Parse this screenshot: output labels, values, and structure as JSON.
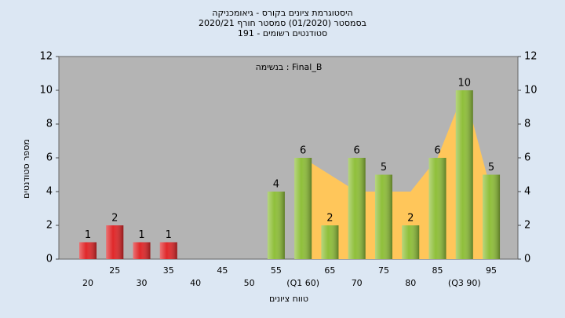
{
  "chart_data": {
    "type": "bar",
    "title": [
      "היסטוגרמת ציונים בקורס - גיאומכניקה",
      "בסמסטר  (01/2020)  סמסטר חורף  2020/21",
      "סטודנטים רשומים - 191"
    ],
    "annotation": "בנשימה : Final_B",
    "x_label": "טווח ציונים",
    "y_label": "מספר סטודנטים",
    "categories": [
      "20",
      "25",
      "30",
      "35",
      "40",
      "45",
      "50",
      "55",
      "(Q1 60)",
      "65",
      "70",
      "75",
      "80",
      "85",
      "(Q3 90)",
      "95"
    ],
    "values": [
      1,
      2,
      1,
      1,
      null,
      null,
      null,
      4,
      6,
      2,
      6,
      5,
      2,
      6,
      10,
      5
    ],
    "colors": [
      "#e0282a",
      "#e0282a",
      "#e0282a",
      "#e0282a",
      "#e0282a",
      "#e0282a",
      "#e0282a",
      "#8fbf3a",
      "#8fbf3a",
      "#8fbf3a",
      "#8fbf3a",
      "#8fbf3a",
      "#8fbf3a",
      "#8fbf3a",
      "#8fbf3a",
      "#8fbf3a"
    ],
    "area": {
      "color": "#ffc65a",
      "values": [
        null,
        null,
        null,
        null,
        null,
        null,
        null,
        null,
        6,
        5,
        4,
        4,
        4,
        6,
        10,
        4
      ]
    },
    "ylim": [
      0,
      12
    ],
    "yticks": [
      0,
      2,
      4,
      6,
      8,
      10,
      12
    ],
    "grid": false
  }
}
